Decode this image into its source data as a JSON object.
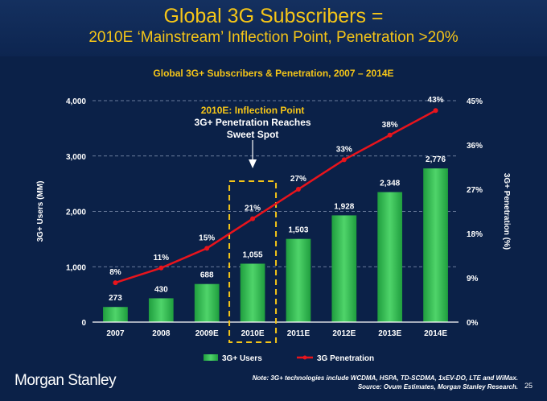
{
  "slide": {
    "title_line1": "Global 3G Subscribers =",
    "title_line2": "2010E ‘Mainstream’ Inflection Point, Penetration >20%",
    "brand": "Morgan Stanley",
    "note_line1": "Note: 3G+ technologies include WCDMA, HSPA, TD-SCDMA, 1xEV-DO, LTE and WiMax.",
    "note_line2": "Source: Ovum Estimates, Morgan Stanley Research.",
    "page_number": "25"
  },
  "chart_data": {
    "type": "bar",
    "title": "Global 3G+ Subscribers & Penetration, 2007 – 2014E",
    "categories": [
      "2007",
      "2008",
      "2009E",
      "2010E",
      "2011E",
      "2012E",
      "2013E",
      "2014E"
    ],
    "series": [
      {
        "name": "3G+ Users",
        "type": "bar",
        "axis": "left",
        "values": [
          273,
          430,
          688,
          1055,
          1503,
          1928,
          2348,
          2776
        ],
        "labels": [
          "273",
          "430",
          "688",
          "1,055",
          "1,503",
          "1,928",
          "2,348",
          "2,776"
        ],
        "color": "#2db84d"
      },
      {
        "name": "3G Penetration",
        "type": "line",
        "axis": "right",
        "values": [
          8,
          11,
          15,
          21,
          27,
          33,
          38,
          43
        ],
        "labels": [
          "8%",
          "11%",
          "15%",
          "21%",
          "27%",
          "33%",
          "38%",
          "43%"
        ],
        "color": "#e8141c"
      }
    ],
    "ylabel": "3G+ Users (MM)",
    "y2label": "3G+ Penetration (%)",
    "ylim": [
      0,
      4000
    ],
    "y2lim": [
      0,
      45
    ],
    "yticks": [
      "0",
      "1,000",
      "2,000",
      "3,000",
      "4,000"
    ],
    "y2ticks": [
      "0%",
      "9%",
      "18%",
      "27%",
      "36%",
      "45%"
    ],
    "grid": true,
    "legend_position": "bottom",
    "annotation": {
      "lines": [
        "2010E: Inflection Point",
        "3G+ Penetration Reaches",
        "Sweet Spot"
      ],
      "highlight_category": "2010E"
    }
  }
}
